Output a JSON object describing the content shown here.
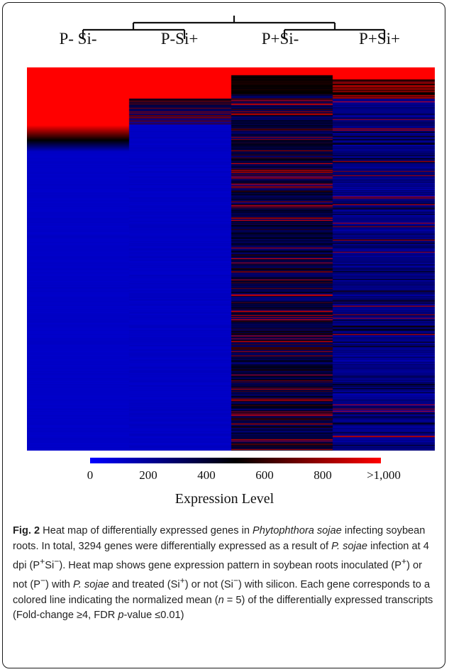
{
  "chart_data": {
    "type": "heatmap",
    "columns": [
      "P- Si-",
      "P-Si+",
      "P+Si-",
      "P+Si+"
    ],
    "genes_total": 3294,
    "colorscale": {
      "low_color": "#0000ff",
      "mid_color": "#000000",
      "high_color": "#ff0000",
      "ticks": [
        "0",
        "200",
        "400",
        "600",
        "800",
        ">1,000"
      ],
      "tick_values": [
        0,
        200,
        400,
        600,
        800,
        1000
      ],
      "min": 0,
      "max": 1000,
      "title": "Expression Level"
    },
    "column_profiles": [
      {
        "column": "P- Si-",
        "pattern": "high (>1,000) for top ~15% of genes, transitions through black to low (~100) for remaining genes"
      },
      {
        "column": "P-Si+",
        "pattern": "high (>1,000) for top ~10%, transitions to low (~100) for remaining genes"
      },
      {
        "column": "P+Si-",
        "pattern": "mostly low-to-mid (~200-450) with many scattered high (red) stripes"
      },
      {
        "column": "P+Si+",
        "pattern": "high for top ~3%, mostly low (~150-300) with occasional red stripes"
      }
    ],
    "dendrogram": {
      "tree": "((P- Si-, P-Si+), (P+Si-, P+Si+))"
    }
  },
  "caption": {
    "fig_label": "Fig. 2",
    "s1": " Heat map of differentially expressed genes in ",
    "s2": "Phytophthora sojae",
    "s3": " infecting soybean roots. In total, 3294 genes were differentially expressed as a result of ",
    "s4": "P. sojae",
    "s5": " infection at 4 dpi (P",
    "s6": "+",
    "s7": "Si",
    "s8": "−",
    "s9": "). Heat map shows gene expression pattern in soybean roots inoculated (P",
    "s10": "+",
    "s11": ") or not (P",
    "s12": "−",
    "s13": ") with ",
    "s14": "P. sojae",
    "s15": " and treated (Si",
    "s16": "+",
    "s17": ") or not (Si",
    "s18": "−",
    "s19": ") with silicon. Each gene corresponds to a colored line indicating the normalized mean (",
    "s20": "n",
    "s21": " = 5) of the differentially expressed transcripts (Fold-change ≥4, FDR ",
    "s22": "p",
    "s23": "-value ≤0.01)"
  }
}
